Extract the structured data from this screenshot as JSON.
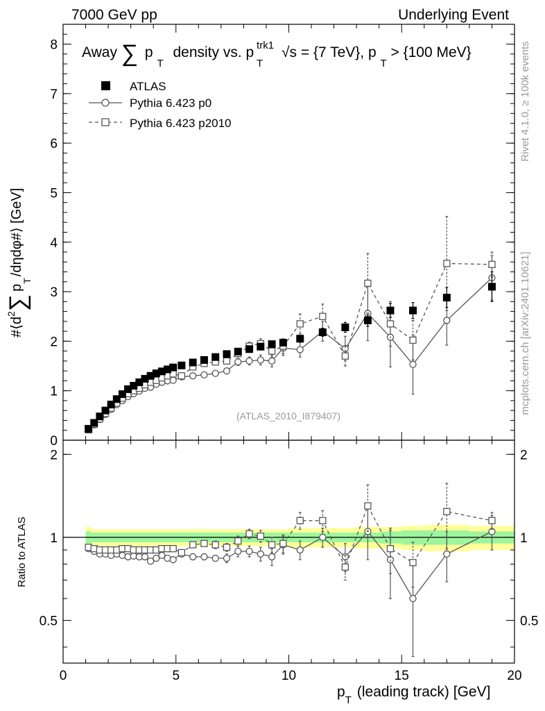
{
  "header": {
    "left": "7000 GeV pp",
    "right": "Underlying Event"
  },
  "side_labels": {
    "top": "Rivet 4.1.0, ≥ 100k events",
    "bottom": "mcplots.cern.ch [arXiv:2401.10621]"
  },
  "chart_data": [
    {
      "type": "scatter",
      "panel": "main",
      "title": "Away ∑ p_T density vs. p_T^trk1, √s = {7 TeV}, p_T > {100 MeV}",
      "title_parts": {
        "away": "Away",
        "sum": "∑",
        "p": "p",
        "T": "T",
        "density": "density vs. p",
        "trk1": "trk1",
        "sqrt": "√s = {7 TeV}, p",
        "cut": " > {100 MeV}"
      },
      "ylabel_parts": {
        "prefix": "#⟨d",
        "sup2": "2",
        "sum": "∑",
        "p": "p",
        "T": "T",
        "suffix": "/dηdφ#⟩ [GeV]"
      },
      "xlim": [
        0,
        20
      ],
      "ylim": [
        0,
        8.4
      ],
      "yticks": [
        "0",
        "1",
        "2",
        "3",
        "4",
        "5",
        "6",
        "7",
        "8"
      ],
      "watermark": "(ATLAS_2010_I879407)",
      "legend": [
        {
          "label": "ATLAS",
          "marker": "filled-square",
          "line": "none"
        },
        {
          "label": "Pythia 6.423 p0",
          "marker": "open-circle",
          "line": "solid"
        },
        {
          "label": "Pythia 6.423 p2010",
          "marker": "open-square",
          "line": "dashed"
        }
      ],
      "series": [
        {
          "name": "ATLAS",
          "x": [
            1.125,
            1.375,
            1.625,
            1.875,
            2.125,
            2.375,
            2.625,
            2.875,
            3.125,
            3.375,
            3.625,
            3.875,
            4.125,
            4.375,
            4.625,
            4.875,
            5.25,
            5.75,
            6.25,
            6.75,
            7.25,
            7.75,
            8.25,
            8.75,
            9.25,
            9.75,
            10.5,
            11.5,
            12.5,
            13.5,
            14.5,
            15.5,
            17,
            19
          ],
          "y": [
            0.23,
            0.35,
            0.48,
            0.6,
            0.72,
            0.83,
            0.93,
            1.03,
            1.1,
            1.17,
            1.24,
            1.3,
            1.35,
            1.39,
            1.43,
            1.47,
            1.51,
            1.57,
            1.62,
            1.68,
            1.74,
            1.79,
            1.84,
            1.89,
            1.94,
            1.97,
            2.05,
            2.18,
            2.28,
            2.42,
            2.62,
            2.62,
            2.88,
            3.1
          ],
          "err": [
            0.01,
            0.01,
            0.01,
            0.01,
            0.01,
            0.01,
            0.01,
            0.01,
            0.01,
            0.01,
            0.01,
            0.01,
            0.01,
            0.01,
            0.01,
            0.01,
            0.02,
            0.02,
            0.02,
            0.02,
            0.03,
            0.03,
            0.04,
            0.05,
            0.05,
            0.06,
            0.07,
            0.08,
            0.1,
            0.12,
            0.14,
            0.16,
            0.2,
            0.3
          ]
        },
        {
          "name": "Pythia 6.423 p0",
          "x": [
            1.125,
            1.375,
            1.625,
            1.875,
            2.125,
            2.375,
            2.625,
            2.875,
            3.125,
            3.375,
            3.625,
            3.875,
            4.125,
            4.375,
            4.625,
            4.875,
            5.25,
            5.75,
            6.25,
            6.75,
            7.25,
            7.75,
            8.25,
            8.75,
            9.25,
            9.75,
            10.5,
            11.5,
            12.5,
            13.5,
            14.5,
            15.5,
            17,
            19
          ],
          "y": [
            0.21,
            0.31,
            0.42,
            0.52,
            0.62,
            0.72,
            0.8,
            0.88,
            0.94,
            0.99,
            1.05,
            1.07,
            1.13,
            1.17,
            1.2,
            1.21,
            1.28,
            1.3,
            1.32,
            1.35,
            1.4,
            1.58,
            1.6,
            1.62,
            1.6,
            1.86,
            1.83,
            2.2,
            1.85,
            2.56,
            2.08,
            1.53,
            2.42,
            3.28
          ],
          "err": [
            0.01,
            0.01,
            0.01,
            0.01,
            0.01,
            0.01,
            0.01,
            0.01,
            0.01,
            0.01,
            0.01,
            0.02,
            0.02,
            0.02,
            0.02,
            0.02,
            0.03,
            0.03,
            0.04,
            0.04,
            0.05,
            0.07,
            0.08,
            0.1,
            0.12,
            0.15,
            0.15,
            0.2,
            0.25,
            0.55,
            0.6,
            0.6,
            0.5,
            0.45
          ]
        },
        {
          "name": "Pythia 6.423 p2010",
          "x": [
            1.125,
            1.375,
            1.625,
            1.875,
            2.125,
            2.375,
            2.625,
            2.875,
            3.125,
            3.375,
            3.625,
            3.875,
            4.125,
            4.375,
            4.625,
            4.875,
            5.25,
            5.75,
            6.25,
            6.75,
            7.25,
            7.75,
            8.25,
            8.75,
            9.25,
            9.75,
            10.5,
            11.5,
            12.5,
            13.5,
            14.5,
            15.5,
            17,
            19
          ],
          "y": [
            0.21,
            0.32,
            0.43,
            0.54,
            0.65,
            0.75,
            0.85,
            0.94,
            1.0,
            1.05,
            1.12,
            1.17,
            1.21,
            1.26,
            1.3,
            1.34,
            1.3,
            1.48,
            1.55,
            1.58,
            1.6,
            1.75,
            1.9,
            1.95,
            1.8,
            1.9,
            2.35,
            2.5,
            1.7,
            3.17,
            2.35,
            2.02,
            3.57,
            3.55
          ],
          "err": [
            0.01,
            0.01,
            0.01,
            0.01,
            0.01,
            0.01,
            0.01,
            0.01,
            0.01,
            0.01,
            0.01,
            0.02,
            0.02,
            0.02,
            0.02,
            0.02,
            0.03,
            0.03,
            0.04,
            0.05,
            0.05,
            0.07,
            0.08,
            0.1,
            0.12,
            0.15,
            0.2,
            0.25,
            0.2,
            0.6,
            0.45,
            0.4,
            0.95,
            0.25
          ]
        }
      ]
    },
    {
      "type": "scatter",
      "panel": "ratio",
      "ylabel": "Ratio to ATLAS",
      "xlabel": "p_T (leading track) [GeV]",
      "xlabel_parts": {
        "p": "p",
        "T": "T",
        "rest": "(leading track) [GeV]"
      },
      "xlim": [
        0,
        20
      ],
      "ylim": [
        0.35,
        2.25
      ],
      "xticks": [
        "0",
        "5",
        "10",
        "15",
        "20"
      ],
      "yticks": [
        "0.5",
        "1",
        "2"
      ],
      "reference": 1.0,
      "bands": {
        "x_edges": [
          1,
          1.25,
          1.5,
          1.75,
          2,
          2.25,
          2.5,
          2.75,
          3,
          3.25,
          3.5,
          3.75,
          4,
          4.25,
          4.5,
          4.75,
          5,
          5.5,
          6,
          6.5,
          7,
          7.5,
          8,
          8.5,
          9,
          9.5,
          10,
          11,
          12,
          13,
          14,
          15,
          16,
          18,
          20
        ],
        "stat": [
          0.05,
          0.04,
          0.04,
          0.04,
          0.04,
          0.04,
          0.04,
          0.04,
          0.04,
          0.04,
          0.04,
          0.04,
          0.04,
          0.04,
          0.04,
          0.04,
          0.04,
          0.04,
          0.04,
          0.04,
          0.04,
          0.04,
          0.04,
          0.04,
          0.04,
          0.04,
          0.04,
          0.04,
          0.04,
          0.04,
          0.05,
          0.06,
          0.06,
          0.05
        ],
        "total": [
          0.09,
          0.07,
          0.07,
          0.07,
          0.07,
          0.07,
          0.07,
          0.07,
          0.07,
          0.07,
          0.07,
          0.07,
          0.07,
          0.07,
          0.07,
          0.07,
          0.07,
          0.07,
          0.07,
          0.07,
          0.07,
          0.07,
          0.07,
          0.07,
          0.07,
          0.07,
          0.08,
          0.08,
          0.08,
          0.09,
          0.09,
          0.1,
          0.11,
          0.1
        ],
        "stat_color": "#9ef59e",
        "total_color": "#ffff99"
      },
      "series": [
        {
          "name": "Pythia 6.423 p0",
          "x": [
            1.125,
            1.375,
            1.625,
            1.875,
            2.125,
            2.375,
            2.625,
            2.875,
            3.125,
            3.375,
            3.625,
            3.875,
            4.125,
            4.375,
            4.625,
            4.875,
            5.25,
            5.75,
            6.25,
            6.75,
            7.25,
            7.75,
            8.25,
            8.75,
            9.25,
            9.75,
            10.5,
            11.5,
            12.5,
            13.5,
            14.5,
            15.5,
            17,
            19
          ],
          "y": [
            0.91,
            0.89,
            0.87,
            0.87,
            0.86,
            0.87,
            0.86,
            0.85,
            0.855,
            0.85,
            0.85,
            0.82,
            0.84,
            0.86,
            0.84,
            0.83,
            0.87,
            0.85,
            0.85,
            0.84,
            0.84,
            0.89,
            0.89,
            0.87,
            0.85,
            0.94,
            0.9,
            1.0,
            0.85,
            1.05,
            0.83,
            0.6,
            0.87,
            1.05
          ],
          "err": [
            0.01,
            0.01,
            0.01,
            0.01,
            0.01,
            0.01,
            0.01,
            0.01,
            0.01,
            0.01,
            0.01,
            0.01,
            0.01,
            0.01,
            0.01,
            0.01,
            0.02,
            0.02,
            0.02,
            0.02,
            0.03,
            0.04,
            0.04,
            0.05,
            0.06,
            0.07,
            0.07,
            0.08,
            0.1,
            0.22,
            0.23,
            0.23,
            0.18,
            0.15
          ]
        },
        {
          "name": "Pythia 6.423 p2010",
          "x": [
            1.125,
            1.375,
            1.625,
            1.875,
            2.125,
            2.375,
            2.625,
            2.875,
            3.125,
            3.375,
            3.625,
            3.875,
            4.125,
            4.375,
            4.625,
            4.875,
            5.25,
            5.75,
            6.25,
            6.75,
            7.25,
            7.75,
            8.25,
            8.75,
            9.25,
            9.75,
            10.5,
            11.5,
            12.5,
            13.5,
            14.5,
            15.5,
            17,
            19
          ],
          "y": [
            0.92,
            0.91,
            0.9,
            0.9,
            0.9,
            0.9,
            0.91,
            0.91,
            0.9,
            0.9,
            0.9,
            0.9,
            0.9,
            0.91,
            0.91,
            0.91,
            0.88,
            0.94,
            0.95,
            0.94,
            0.92,
            0.97,
            1.03,
            1.01,
            0.94,
            0.95,
            1.15,
            1.15,
            0.78,
            1.3,
            0.91,
            0.81,
            1.24,
            1.15
          ],
          "err": [
            0.01,
            0.01,
            0.01,
            0.01,
            0.01,
            0.01,
            0.01,
            0.01,
            0.01,
            0.01,
            0.01,
            0.01,
            0.01,
            0.01,
            0.01,
            0.01,
            0.02,
            0.02,
            0.02,
            0.03,
            0.03,
            0.04,
            0.04,
            0.05,
            0.06,
            0.07,
            0.08,
            0.1,
            0.08,
            0.25,
            0.17,
            0.15,
            0.33,
            0.08
          ]
        }
      ]
    }
  ]
}
